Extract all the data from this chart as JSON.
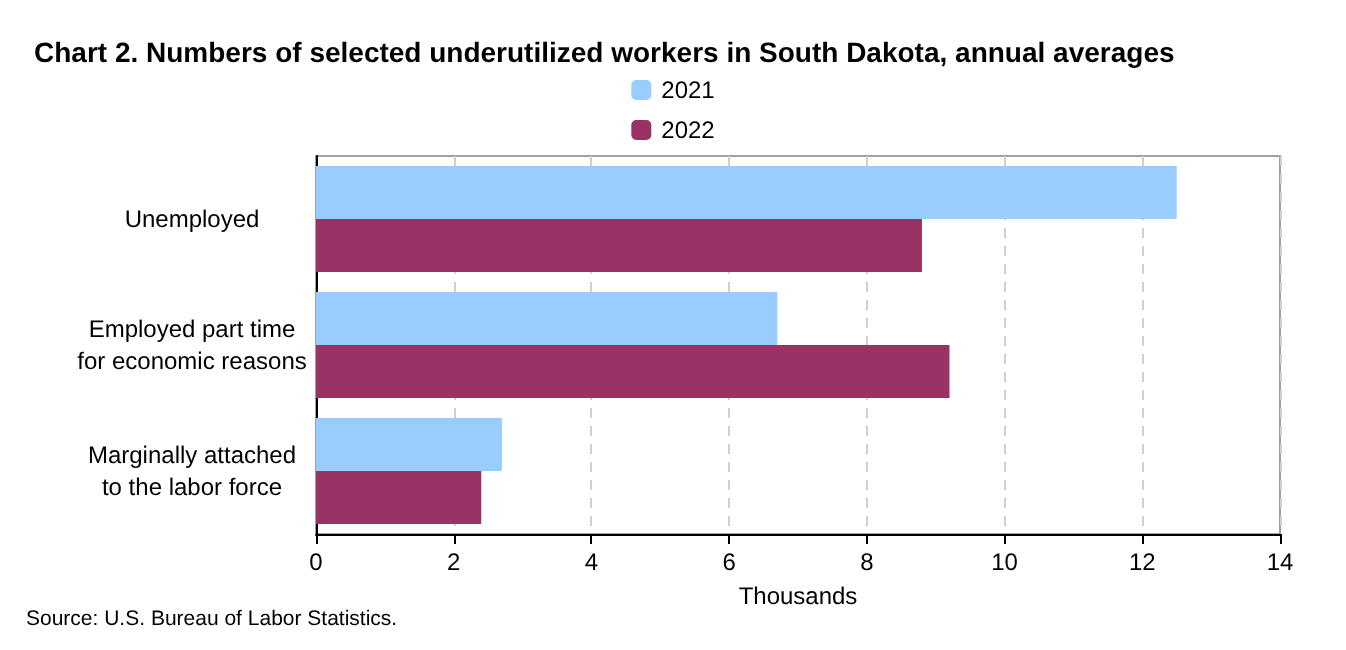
{
  "chart_data": {
    "type": "bar",
    "orientation": "horizontal",
    "title": "Chart 2. Numbers of selected underutilized workers in South Dakota, annual averages",
    "xlabel": "Thousands",
    "categories": [
      "Unemployed",
      "Employed part time\nfor economic reasons",
      "Marginally attached\nto the labor force"
    ],
    "series": [
      {
        "name": "2021",
        "color": "#99ccff",
        "values": [
          12.5,
          6.7,
          2.7
        ]
      },
      {
        "name": "2022",
        "color": "#993366",
        "values": [
          8.8,
          9.2,
          2.4
        ]
      }
    ],
    "xlim": [
      0,
      14
    ],
    "xticks": [
      0,
      2,
      4,
      6,
      8,
      10,
      12,
      14
    ],
    "grid": "x",
    "legend": "top",
    "annotations": [
      "Source: U.S. Bureau of Labor Statistics."
    ]
  }
}
